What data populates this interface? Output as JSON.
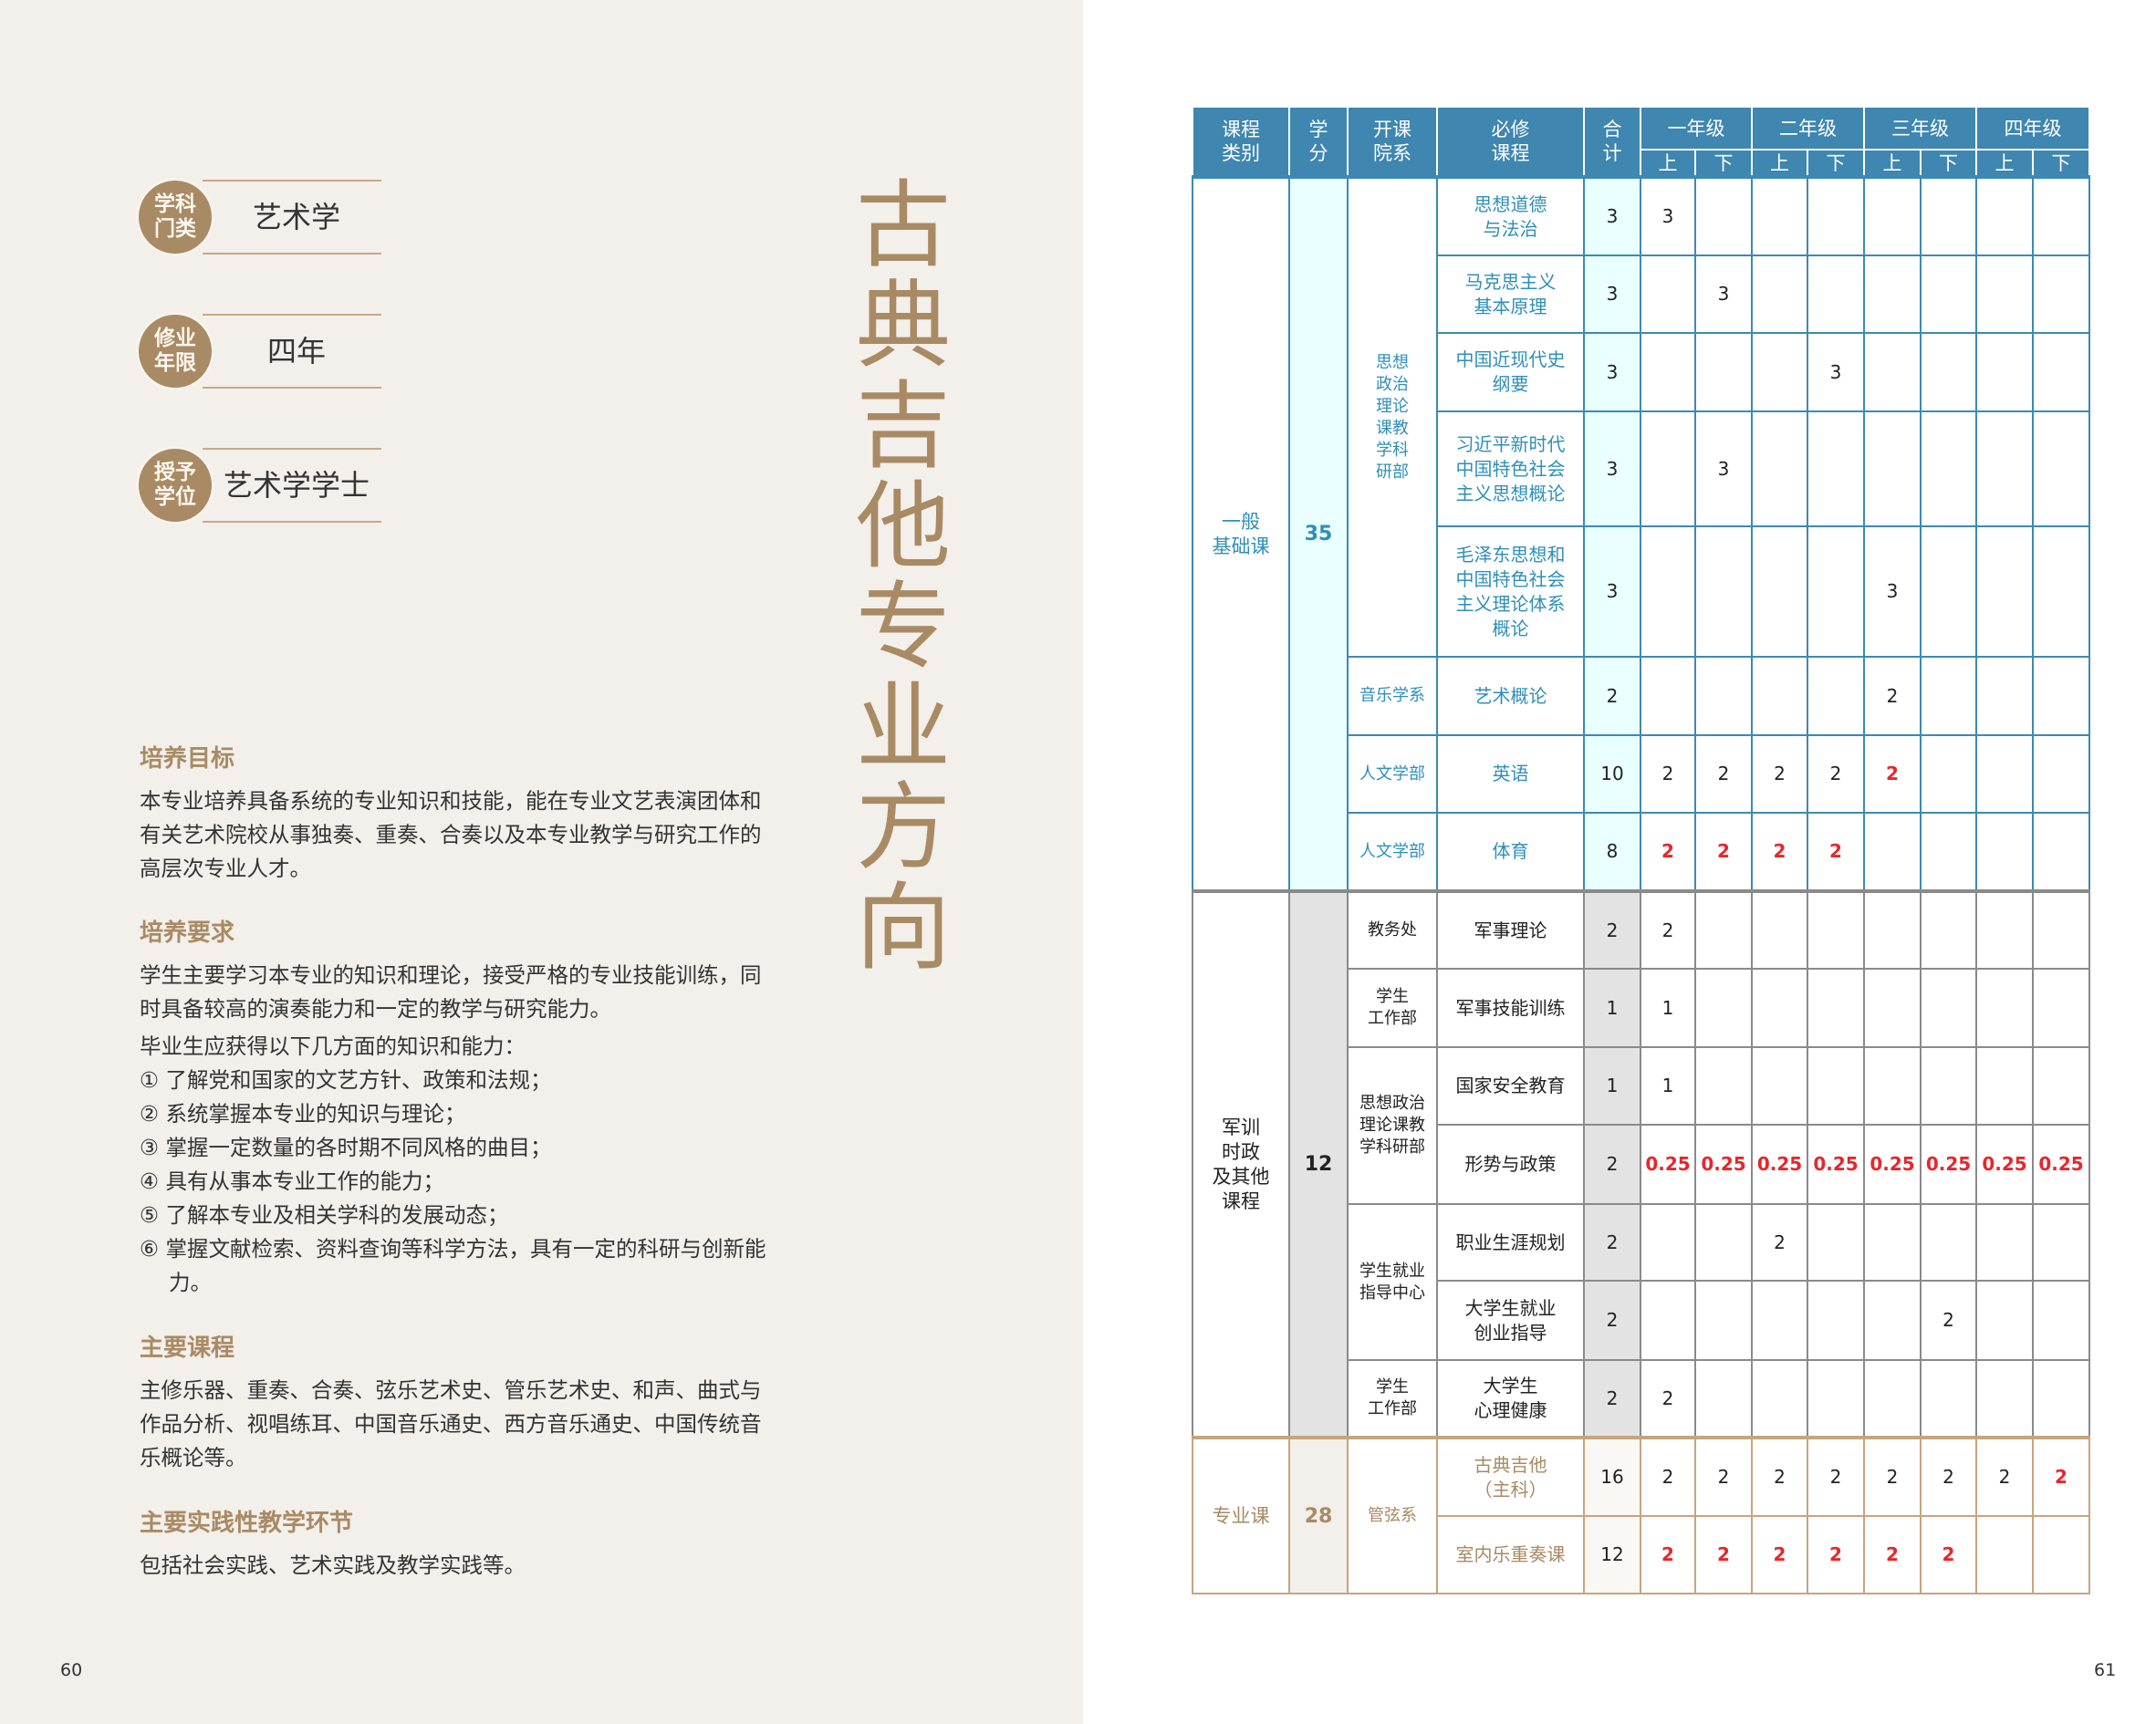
{
  "left_page": {
    "info": [
      {
        "label": "学科\n门类",
        "value": "艺术学"
      },
      {
        "label": "修业\n年限",
        "value": "四年"
      },
      {
        "label": "授予\n学位",
        "value": "艺术学学士"
      }
    ],
    "title": "古典吉他专业方向",
    "sections": [
      {
        "heading": "培养目标",
        "paragraphs": [
          "本专业培养具备系统的专业知识和技能，能在专业文艺表演团体和有关艺术院校从事独奏、重奏、合奏以及本专业教学与研究工作的高层次专业人才。"
        ]
      },
      {
        "heading": "培养要求",
        "paragraphs": [
          "学生主要学习本专业的知识和理论，接受严格的专业技能训练，同时具备较高的演奏能力和一定的教学与研究能力。",
          "毕业生应获得以下几方面的知识和能力："
        ],
        "items": [
          "① 了解党和国家的文艺方针、政策和法规；",
          "② 系统掌握本专业的知识与理论；",
          "③ 掌握一定数量的各时期不同风格的曲目；",
          "④ 具有从事本专业工作的能力；",
          "⑤ 了解本专业及相关学科的发展动态；",
          "⑥ 掌握文献检索、资料查询等科学方法，具有一定的科研与创新能力。"
        ]
      },
      {
        "heading": "主要课程",
        "paragraphs": [
          "主修乐器、重奏、合奏、弦乐艺术史、管乐艺术史、和声、曲式与作品分析、视唱练耳、中国音乐通史、西方音乐通史、中国传统音乐概论等。"
        ]
      },
      {
        "heading": "主要实践性教学环节",
        "paragraphs": [
          "包括社会实践、艺术实践及教学实践等。"
        ]
      }
    ],
    "page_number": "60"
  },
  "right_page": {
    "page_number": "61",
    "table": {
      "headers": [
        "课程\n类别",
        "学\n分",
        "开课\n院系",
        "必修\n课程",
        "合\n计"
      ],
      "years": [
        "一年级",
        "二年级",
        "三年级",
        "四年级"
      ],
      "terms": [
        "上",
        "下",
        "上",
        "下",
        "上",
        "下",
        "上",
        "下"
      ],
      "colors": {
        "header": "#3f86b0",
        "general": "#3b8ab5",
        "other": "#8a8a8a",
        "major": "#c8a47e",
        "highlight": "#e8262b"
      },
      "sections": [
        {
          "category": "一般\n基础课",
          "credits": "35",
          "rows": [
            {
              "dept": "思想政治理论课教学科研部",
              "dept_span": 5,
              "course": "思想道德\n与法治",
              "total": "3",
              "terms": [
                "3",
                "",
                "",
                "",
                "",
                "",
                "",
                ""
              ],
              "highlight": []
            },
            {
              "course": "马克思主义\n基本原理",
              "total": "3",
              "terms": [
                "",
                "3",
                "",
                "",
                "",
                "",
                "",
                ""
              ],
              "highlight": []
            },
            {
              "course": "中国近现代史\n纲要",
              "total": "3",
              "terms": [
                "",
                "",
                "",
                "3",
                "",
                "",
                "",
                ""
              ],
              "highlight": []
            },
            {
              "course": "习近平新时代\n中国特色社会\n主义思想概论",
              "total": "3",
              "terms": [
                "",
                "3",
                "",
                "",
                "",
                "",
                "",
                ""
              ],
              "highlight": []
            },
            {
              "course": "毛泽东思想和\n中国特色社会\n主义理论体系\n概论",
              "total": "3",
              "terms": [
                "",
                "",
                "",
                "",
                "3",
                "",
                "",
                ""
              ],
              "highlight": []
            },
            {
              "dept": "音乐学系",
              "dept_span": 1,
              "course": "艺术概论",
              "total": "2",
              "terms": [
                "",
                "",
                "",
                "",
                "2",
                "",
                "",
                ""
              ],
              "highlight": []
            },
            {
              "dept": "人文学部",
              "dept_span": 1,
              "course": "英语",
              "total": "10",
              "terms": [
                "2",
                "2",
                "2",
                "2",
                "2",
                "",
                "",
                ""
              ],
              "highlight": [
                4
              ]
            },
            {
              "dept": "人文学部",
              "dept_span": 1,
              "course": "体育",
              "total": "8",
              "terms": [
                "2",
                "2",
                "2",
                "2",
                "",
                "",
                "",
                ""
              ],
              "highlight": [
                0,
                1,
                2,
                3
              ]
            }
          ]
        },
        {
          "category": "军训\n时政\n及其他\n课程",
          "credits": "12",
          "rows": [
            {
              "dept": "教务处",
              "dept_span": 1,
              "course": "军事理论",
              "total": "2",
              "terms": [
                "2",
                "",
                "",
                "",
                "",
                "",
                "",
                ""
              ],
              "highlight": []
            },
            {
              "dept": "学生\n工作部",
              "dept_span": 1,
              "course": "军事技能训练",
              "total": "1",
              "terms": [
                "1",
                "",
                "",
                "",
                "",
                "",
                "",
                ""
              ],
              "highlight": []
            },
            {
              "dept": "思想政治\n理论课教\n学科研部",
              "dept_span": 2,
              "course": "国家安全教育",
              "total": "1",
              "terms": [
                "1",
                "",
                "",
                "",
                "",
                "",
                "",
                ""
              ],
              "highlight": []
            },
            {
              "course": "形势与政策",
              "total": "2",
              "terms": [
                "0.25",
                "0.25",
                "0.25",
                "0.25",
                "0.25",
                "0.25",
                "0.25",
                "0.25"
              ],
              "highlight": [
                0,
                1,
                2,
                3,
                4,
                5,
                6,
                7
              ]
            },
            {
              "dept": "学生就业\n指导中心",
              "dept_span": 2,
              "course": "职业生涯规划",
              "total": "2",
              "terms": [
                "",
                "",
                "2",
                "",
                "",
                "",
                "",
                ""
              ],
              "highlight": []
            },
            {
              "course": "大学生就业\n创业指导",
              "total": "2",
              "terms": [
                "",
                "",
                "",
                "",
                "",
                "2",
                "",
                ""
              ],
              "highlight": []
            },
            {
              "dept": "学生\n工作部",
              "dept_span": 1,
              "course": "大学生\n心理健康",
              "total": "2",
              "terms": [
                "2",
                "",
                "",
                "",
                "",
                "",
                "",
                ""
              ],
              "highlight": []
            }
          ]
        },
        {
          "category": "专业课",
          "credits": "28",
          "rows": [
            {
              "dept": "管弦系",
              "dept_span": 2,
              "course": "古典吉他\n（主科）",
              "total": "16",
              "terms": [
                "2",
                "2",
                "2",
                "2",
                "2",
                "2",
                "2",
                "2"
              ],
              "highlight": [
                7
              ]
            },
            {
              "course": "室内乐重奏课",
              "total": "12",
              "terms": [
                "2",
                "2",
                "2",
                "2",
                "2",
                "2",
                "",
                ""
              ],
              "highlight": [
                0,
                1,
                2,
                3,
                4,
                5
              ]
            }
          ]
        }
      ]
    }
  }
}
